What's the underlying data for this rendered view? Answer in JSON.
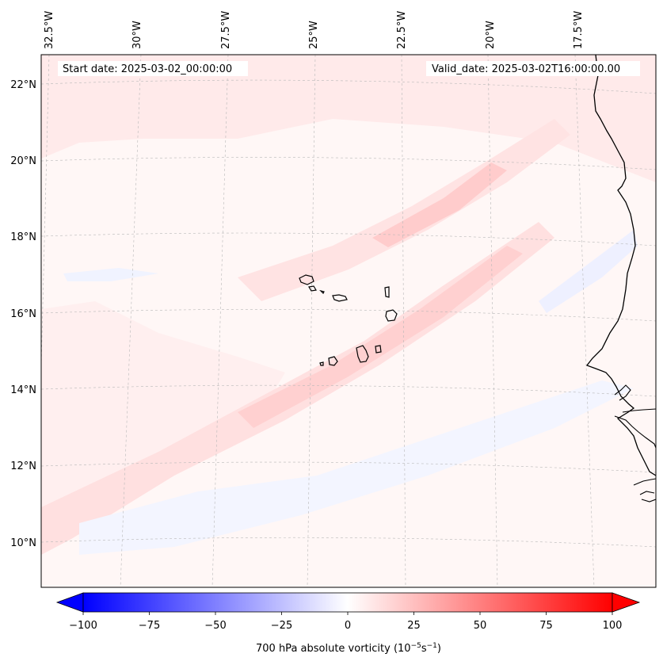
{
  "header": {
    "start_date": "Start date: 2025-03-02_00:00:00",
    "valid_date": "Valid_date: 2025-03-02T16:00:00.00"
  },
  "axes": {
    "lon_labels": [
      "32.5°W",
      "30°W",
      "27.5°W",
      "25°W",
      "22.5°W",
      "20°W",
      "17.5°W"
    ],
    "lat_labels": [
      "22°N",
      "20°N",
      "18°N",
      "16°N",
      "14°N",
      "12°N",
      "10°N"
    ],
    "gridlines": true
  },
  "colorbar": {
    "label": "700 hPa absolute vorticity (10",
    "label_exp1": "−5",
    "label_mid": "s",
    "label_exp2": "−1",
    "label_end": ")",
    "ticks": [
      "−100",
      "−75",
      "−50",
      "−25",
      "0",
      "25",
      "50",
      "75",
      "100"
    ],
    "min": -100,
    "max": 100,
    "colormap": "bwr",
    "extend": "both"
  },
  "map": {
    "region": "Cape Verde and West African coast",
    "ocean_background": "#fff6f5",
    "coastline_color": "#000000"
  }
}
